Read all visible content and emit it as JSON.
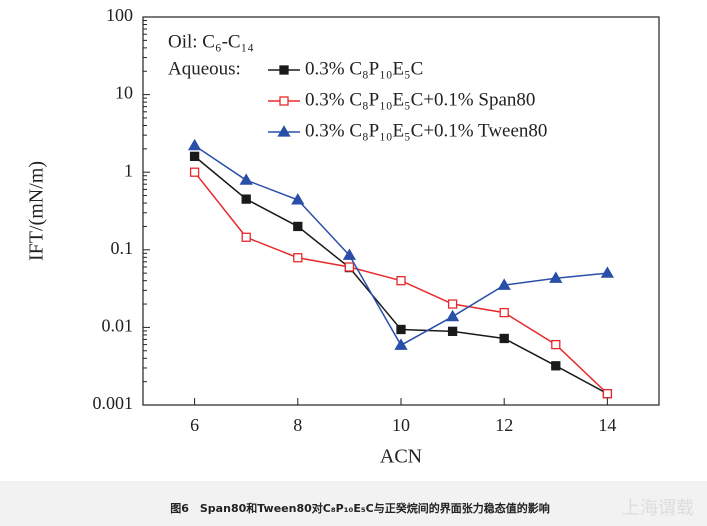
{
  "chart_data": {
    "type": "line",
    "x_label": "ACN",
    "y_label": "IFT/(mN/m)",
    "annotations": [
      "Oil: C₆-C₁₄",
      "Aqueous:"
    ],
    "x": [
      6,
      7,
      8,
      9,
      10,
      11,
      12,
      13,
      14
    ],
    "series": [
      {
        "name": "0.3% C₈P₁₀E₅C",
        "color": "#1a1a1a",
        "marker": "square",
        "filled": true,
        "values": [
          1.6,
          0.45,
          0.2,
          0.059,
          0.0094,
          0.0089,
          0.0072,
          0.0032,
          0.0014
        ]
      },
      {
        "name": "0.3% C₈P₁₀E₅C+0.1% Span80",
        "color": "#e8292c",
        "marker": "square",
        "filled": false,
        "values": [
          1.0,
          0.145,
          0.079,
          0.06,
          0.04,
          0.02,
          0.0155,
          0.006,
          0.0014
        ]
      },
      {
        "name": "0.3% C₈P₁₀E₅C+0.1% Tween80",
        "color": "#2a4fa8",
        "marker": "triangle",
        "filled": true,
        "values": [
          2.2,
          0.79,
          0.44,
          0.085,
          0.0059,
          0.0138,
          0.035,
          0.043,
          0.05
        ]
      }
    ],
    "xlim": [
      5,
      15
    ],
    "xticks": [
      6,
      8,
      10,
      12,
      14
    ],
    "ylim": [
      0.001,
      100
    ],
    "yticks": [
      0.001,
      0.01,
      0.1,
      1,
      10,
      100
    ],
    "ylog": true,
    "caption": "图6　Span80和Tween80对C₈P₁₀E₅C与正癸烷间的界面张力稳态值的影响",
    "watermark": "上海谓载"
  }
}
